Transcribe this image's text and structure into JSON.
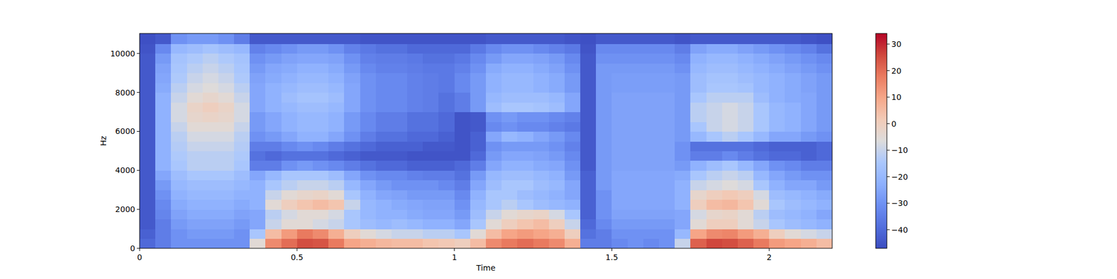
{
  "chart_data": {
    "type": "heatmap",
    "x_label": "Time",
    "y_label": "Hz",
    "xlim": [
      0,
      2.2
    ],
    "ylim": [
      0,
      11025
    ],
    "xticks": [
      0,
      0.5,
      1,
      1.5,
      2
    ],
    "yticks": [
      0,
      2000,
      4000,
      6000,
      8000,
      10000
    ],
    "x_bins": [
      0,
      0.05,
      0.1,
      0.15,
      0.2,
      0.25,
      0.3,
      0.35,
      0.4,
      0.45,
      0.5,
      0.55,
      0.6,
      0.65,
      0.7,
      0.75,
      0.8,
      0.85,
      0.9,
      0.95,
      1,
      1.05,
      1.1,
      1.15,
      1.2,
      1.25,
      1.3,
      1.35,
      1.4,
      1.45,
      1.5,
      1.55,
      1.6,
      1.65,
      1.7,
      1.75,
      1.8,
      1.85,
      1.9,
      1.95,
      2,
      2.05,
      2.1,
      2.15,
      2.2
    ],
    "y_bins": [
      0,
      500,
      1000,
      1500,
      2000,
      2500,
      3000,
      3500,
      4000,
      4500,
      5000,
      5500,
      6000,
      6500,
      7000,
      7500,
      8000,
      8500,
      9000,
      9500,
      10000,
      10500,
      11025
    ],
    "values": [
      [
        -40,
        -35,
        -30,
        -30,
        -30,
        -30,
        -30,
        -5,
        15,
        20,
        25,
        24,
        18,
        10,
        8,
        6,
        5,
        5,
        3,
        2,
        0,
        5,
        15,
        18,
        20,
        18,
        15,
        8,
        -35,
        -35,
        -32,
        -30,
        -32,
        -30,
        -10,
        22,
        26,
        25,
        22,
        18,
        12,
        10,
        8,
        5
      ],
      [
        -42,
        -35,
        -30,
        -28,
        -28,
        -28,
        -30,
        -15,
        5,
        12,
        18,
        15,
        8,
        0,
        -5,
        -8,
        -10,
        -10,
        -12,
        -12,
        -15,
        -5,
        5,
        10,
        12,
        10,
        8,
        0,
        -38,
        -35,
        -30,
        -30,
        -30,
        -30,
        -20,
        10,
        15,
        16,
        12,
        8,
        0,
        -5,
        -8,
        -10
      ],
      [
        -44,
        -35,
        -28,
        -26,
        -26,
        -26,
        -28,
        -25,
        -10,
        -5,
        -5,
        -8,
        -10,
        -15,
        -18,
        -20,
        -18,
        -20,
        -22,
        -22,
        -25,
        -15,
        -5,
        0,
        3,
        5,
        0,
        -10,
        -40,
        -32,
        -28,
        -28,
        -28,
        -28,
        -25,
        -5,
        0,
        0,
        -5,
        -10,
        -15,
        -18,
        -20,
        -22
      ],
      [
        -44,
        -33,
        -26,
        -24,
        -24,
        -24,
        -26,
        -25,
        -12,
        -8,
        -5,
        -5,
        -8,
        -15,
        -20,
        -22,
        -22,
        -24,
        -25,
        -25,
        -28,
        -18,
        -10,
        -5,
        -3,
        -2,
        -8,
        -15,
        -42,
        -30,
        -26,
        -26,
        -26,
        -26,
        -25,
        -8,
        -3,
        -2,
        -5,
        -12,
        -18,
        -20,
        -22,
        -25
      ],
      [
        -44,
        -32,
        -24,
        -22,
        -22,
        -22,
        -24,
        -22,
        -5,
        0,
        3,
        5,
        3,
        -10,
        -20,
        -22,
        -24,
        -25,
        -26,
        -26,
        -30,
        -20,
        -15,
        -12,
        -15,
        -18,
        -20,
        -22,
        -42,
        -30,
        -25,
        -25,
        -25,
        -25,
        -22,
        0,
        5,
        6,
        3,
        -5,
        -15,
        -18,
        -20,
        -22
      ],
      [
        -44,
        -30,
        -22,
        -20,
        -20,
        -20,
        -22,
        -22,
        -10,
        -5,
        -3,
        -2,
        -5,
        -15,
        -22,
        -25,
        -26,
        -28,
        -28,
        -28,
        -32,
        -22,
        -15,
        -15,
        -18,
        -20,
        -22,
        -25,
        -42,
        -30,
        -25,
        -25,
        -25,
        -25,
        -22,
        -3,
        0,
        2,
        0,
        -8,
        -18,
        -20,
        -22,
        -24
      ],
      [
        -44,
        -28,
        -20,
        -18,
        -18,
        -18,
        -20,
        -22,
        -15,
        -12,
        -10,
        -10,
        -12,
        -20,
        -25,
        -28,
        -30,
        -30,
        -30,
        -32,
        -35,
        -25,
        -18,
        -15,
        -15,
        -18,
        -20,
        -25,
        -42,
        -28,
        -25,
        -25,
        -25,
        -25,
        -22,
        -10,
        -8,
        -6,
        -8,
        -15,
        -22,
        -25,
        -25,
        -28
      ],
      [
        -44,
        -25,
        -18,
        -15,
        -15,
        -15,
        -18,
        -25,
        -20,
        -15,
        -15,
        -15,
        -18,
        -25,
        -30,
        -32,
        -32,
        -34,
        -35,
        -35,
        -38,
        -28,
        -20,
        -18,
        -18,
        -20,
        -22,
        -28,
        -42,
        -28,
        -25,
        -25,
        -25,
        -25,
        -24,
        -15,
        -12,
        -10,
        -12,
        -20,
        -25,
        -28,
        -30,
        -30
      ],
      [
        -44,
        -22,
        -15,
        -12,
        -12,
        -12,
        -15,
        -35,
        -35,
        -30,
        -28,
        -30,
        -32,
        -35,
        -38,
        -40,
        -40,
        -42,
        -42,
        -42,
        -40,
        -35,
        -25,
        -22,
        -22,
        -24,
        -25,
        -30,
        -44,
        -28,
        -26,
        -26,
        -26,
        -26,
        -28,
        -22,
        -18,
        -15,
        -20,
        -25,
        -30,
        -32,
        -35,
        -35
      ],
      [
        -44,
        -22,
        -14,
        -12,
        -12,
        -12,
        -14,
        -38,
        -40,
        -38,
        -38,
        -38,
        -40,
        -42,
        -44,
        -44,
        -44,
        -45,
        -45,
        -45,
        -45,
        -40,
        -28,
        -25,
        -25,
        -26,
        -28,
        -32,
        -44,
        -28,
        -26,
        -26,
        -26,
        -26,
        -30,
        -35,
        -35,
        -32,
        -35,
        -38,
        -40,
        -40,
        -42,
        -40
      ],
      [
        -44,
        -22,
        -13,
        -10,
        -10,
        -10,
        -13,
        -35,
        -35,
        -32,
        -30,
        -32,
        -35,
        -38,
        -40,
        -42,
        -42,
        -42,
        -44,
        -44,
        -45,
        -42,
        -30,
        -28,
        -28,
        -28,
        -30,
        -34,
        -44,
        -28,
        -26,
        -26,
        -26,
        -26,
        -30,
        -38,
        -38,
        -38,
        -38,
        -40,
        -42,
        -42,
        -42,
        -40
      ],
      [
        -44,
        -22,
        -12,
        -8,
        -8,
        -8,
        -12,
        -30,
        -28,
        -25,
        -22,
        -22,
        -25,
        -30,
        -35,
        -38,
        -38,
        -40,
        -40,
        -42,
        -45,
        -42,
        -25,
        -20,
        -22,
        -25,
        -28,
        -32,
        -44,
        -28,
        -26,
        -26,
        -26,
        -26,
        -28,
        -20,
        -15,
        -12,
        -15,
        -20,
        -25,
        -25,
        -28,
        -30
      ],
      [
        -44,
        -22,
        -10,
        -5,
        -5,
        -5,
        -10,
        -28,
        -25,
        -22,
        -20,
        -20,
        -22,
        -28,
        -32,
        -35,
        -35,
        -38,
        -38,
        -40,
        -45,
        -44,
        -32,
        -30,
        -32,
        -32,
        -34,
        -36,
        -44,
        -28,
        -26,
        -26,
        -26,
        -26,
        -28,
        -15,
        -10,
        -8,
        -10,
        -15,
        -20,
        -22,
        -25,
        -28
      ],
      [
        -44,
        -22,
        -8,
        -3,
        -2,
        -3,
        -8,
        -28,
        -25,
        -22,
        -20,
        -20,
        -22,
        -28,
        -32,
        -35,
        -35,
        -38,
        -38,
        -40,
        -45,
        -44,
        -30,
        -28,
        -30,
        -30,
        -32,
        -34,
        -44,
        -28,
        -26,
        -26,
        -26,
        -26,
        -28,
        -12,
        -10,
        -8,
        -10,
        -15,
        -20,
        -22,
        -25,
        -28
      ],
      [
        -44,
        -22,
        -8,
        -2,
        0,
        -2,
        -8,
        -25,
        -22,
        -20,
        -18,
        -18,
        -20,
        -25,
        -30,
        -32,
        -32,
        -34,
        -35,
        -38,
        -35,
        -28,
        -18,
        -15,
        -15,
        -16,
        -18,
        -25,
        -44,
        -28,
        -26,
        -26,
        -26,
        -26,
        -28,
        -12,
        -10,
        -8,
        -10,
        -15,
        -20,
        -22,
        -25,
        -28
      ],
      [
        -44,
        -22,
        -10,
        -5,
        -3,
        -5,
        -10,
        -25,
        -22,
        -18,
        -16,
        -16,
        -18,
        -25,
        -30,
        -32,
        -32,
        -34,
        -35,
        -38,
        -35,
        -28,
        -20,
        -18,
        -18,
        -18,
        -20,
        -25,
        -44,
        -28,
        -26,
        -26,
        -26,
        -26,
        -28,
        -15,
        -12,
        -12,
        -12,
        -18,
        -22,
        -24,
        -25,
        -28
      ],
      [
        -44,
        -24,
        -12,
        -8,
        -6,
        -8,
        -12,
        -25,
        -22,
        -20,
        -18,
        -18,
        -20,
        -25,
        -30,
        -32,
        -32,
        -34,
        -35,
        -36,
        -32,
        -28,
        -22,
        -20,
        -20,
        -22,
        -24,
        -28,
        -44,
        -28,
        -27,
        -27,
        -27,
        -27,
        -28,
        -18,
        -15,
        -15,
        -16,
        -20,
        -22,
        -24,
        -26,
        -28
      ],
      [
        -44,
        -25,
        -14,
        -10,
        -8,
        -10,
        -14,
        -26,
        -24,
        -22,
        -20,
        -20,
        -22,
        -26,
        -30,
        -32,
        -32,
        -34,
        -35,
        -36,
        -32,
        -28,
        -22,
        -20,
        -20,
        -22,
        -24,
        -28,
        -44,
        -28,
        -27,
        -27,
        -27,
        -27,
        -28,
        -18,
        -16,
        -16,
        -18,
        -20,
        -22,
        -24,
        -26,
        -28
      ],
      [
        -44,
        -26,
        -15,
        -12,
        -10,
        -12,
        -15,
        -28,
        -25,
        -24,
        -22,
        -22,
        -24,
        -28,
        -32,
        -34,
        -34,
        -35,
        -36,
        -36,
        -34,
        -30,
        -24,
        -22,
        -22,
        -24,
        -26,
        -30,
        -44,
        -28,
        -28,
        -28,
        -28,
        -28,
        -30,
        -20,
        -18,
        -18,
        -20,
        -22,
        -24,
        -26,
        -28,
        -30
      ],
      [
        -44,
        -28,
        -16,
        -14,
        -12,
        -14,
        -16,
        -30,
        -28,
        -26,
        -25,
        -25,
        -26,
        -30,
        -34,
        -35,
        -35,
        -36,
        -38,
        -38,
        -36,
        -32,
        -28,
        -25,
        -25,
        -26,
        -28,
        -32,
        -44,
        -30,
        -30,
        -30,
        -30,
        -30,
        -32,
        -22,
        -20,
        -20,
        -22,
        -24,
        -26,
        -28,
        -30,
        -32
      ],
      [
        -45,
        -32,
        -20,
        -18,
        -16,
        -18,
        -20,
        -34,
        -32,
        -30,
        -28,
        -28,
        -30,
        -34,
        -36,
        -38,
        -38,
        -40,
        -40,
        -40,
        -40,
        -36,
        -32,
        -30,
        -30,
        -32,
        -34,
        -36,
        -45,
        -32,
        -32,
        -32,
        -32,
        -32,
        -35,
        -26,
        -24,
        -24,
        -26,
        -28,
        -30,
        -32,
        -34,
        -38
      ],
      [
        -46,
        -44,
        -30,
        -28,
        -28,
        -30,
        -35,
        -44,
        -44,
        -44,
        -44,
        -44,
        -44,
        -44,
        -45,
        -45,
        -45,
        -45,
        -45,
        -45,
        -45,
        -45,
        -44,
        -44,
        -44,
        -44,
        -44,
        -45,
        -46,
        -44,
        -44,
        -44,
        -44,
        -44,
        -45,
        -44,
        -44,
        -44,
        -44,
        -44,
        -44,
        -44,
        -45,
        -46
      ]
    ],
    "zlim": [
      -47,
      34
    ],
    "zticks": [
      {
        "value": -40,
        "label": "−40"
      },
      {
        "value": -30,
        "label": "−30"
      },
      {
        "value": -20,
        "label": "−20"
      },
      {
        "value": -10,
        "label": "−10"
      },
      0,
      10,
      20,
      30
    ]
  }
}
